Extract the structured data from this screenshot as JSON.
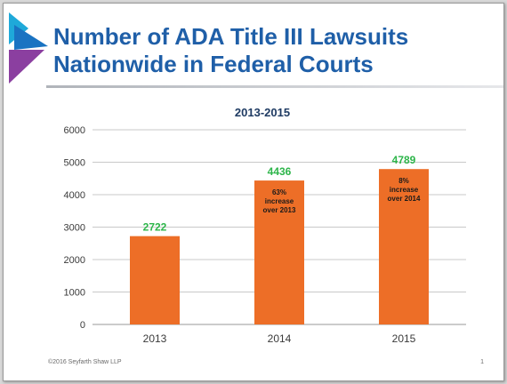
{
  "slide": {
    "title_line1": "Number of ADA Title III Lawsuits",
    "title_line2": "Nationwide in Federal Courts",
    "footer": "©2016 Seyfarth Shaw LLP",
    "page_number": "1"
  },
  "colors": {
    "title": "#1f5fa8",
    "bar": "#ed6e27",
    "value_label": "#2db54a",
    "logo_blue": "#1a73c2",
    "logo_purple": "#8b3fa0",
    "logo_cyan": "#1fa9d9"
  },
  "chart_data": {
    "type": "bar",
    "title": "2013-2015",
    "categories": [
      "2013",
      "2014",
      "2015"
    ],
    "values": [
      2722,
      4436,
      4789
    ],
    "value_labels": [
      "2722",
      "4436",
      "4789"
    ],
    "annotations": [
      "",
      "63%\nincrease\nover 2013",
      "8%\nincrease\nover 2014"
    ],
    "ylim": [
      0,
      6000
    ],
    "yticks": [
      0,
      1000,
      2000,
      3000,
      4000,
      5000,
      6000
    ],
    "grid": true,
    "legend": "none",
    "xlabel": "",
    "ylabel": ""
  }
}
